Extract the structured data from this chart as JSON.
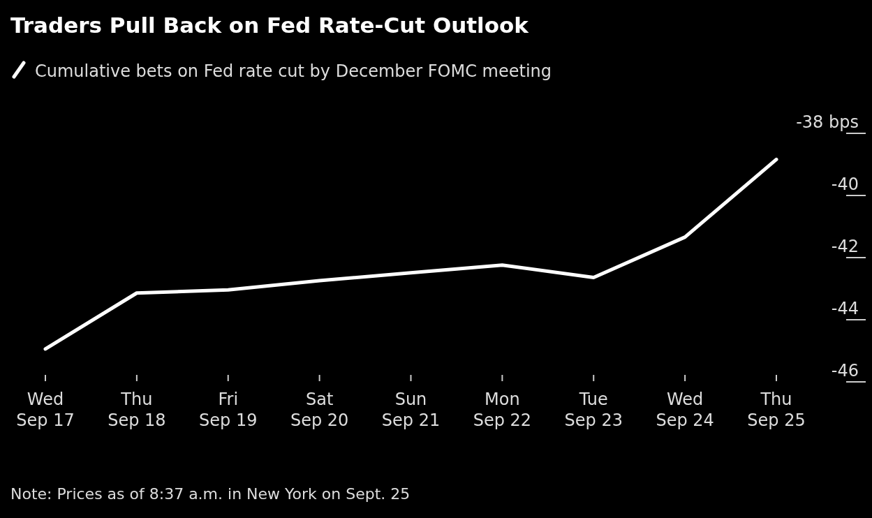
{
  "chart_data": {
    "type": "line",
    "title": "Traders Pull Back on Fed Rate-Cut Outlook",
    "categories": [
      "Wed Sep 17",
      "Thu Sep 18",
      "Fri Sep 19",
      "Sat Sep 20",
      "Sun Sep 21",
      "Mon Sep 22",
      "Tue Sep 23",
      "Wed Sep 24",
      "Thu Sep 25"
    ],
    "series": [
      {
        "name": "Cumulative bets on Fed rate cut by December FOMC meeting",
        "color": "#ffffff",
        "values": [
          -45.3,
          -43.5,
          -43.4,
          -43.1,
          -42.85,
          -42.6,
          -43.0,
          -41.7,
          -39.2
        ]
      }
    ],
    "ylim": [
      -46,
      -38
    ],
    "yticks": [
      {
        "value": -38,
        "label": "-38 bps"
      },
      -40,
      -42,
      -44,
      -46
    ],
    "legend": "top left",
    "grid": false,
    "marker": "none",
    "line_style": "solid",
    "annotations": [
      "Note: Prices as of 8:37 a.m. in New York on Sept. 25"
    ]
  }
}
